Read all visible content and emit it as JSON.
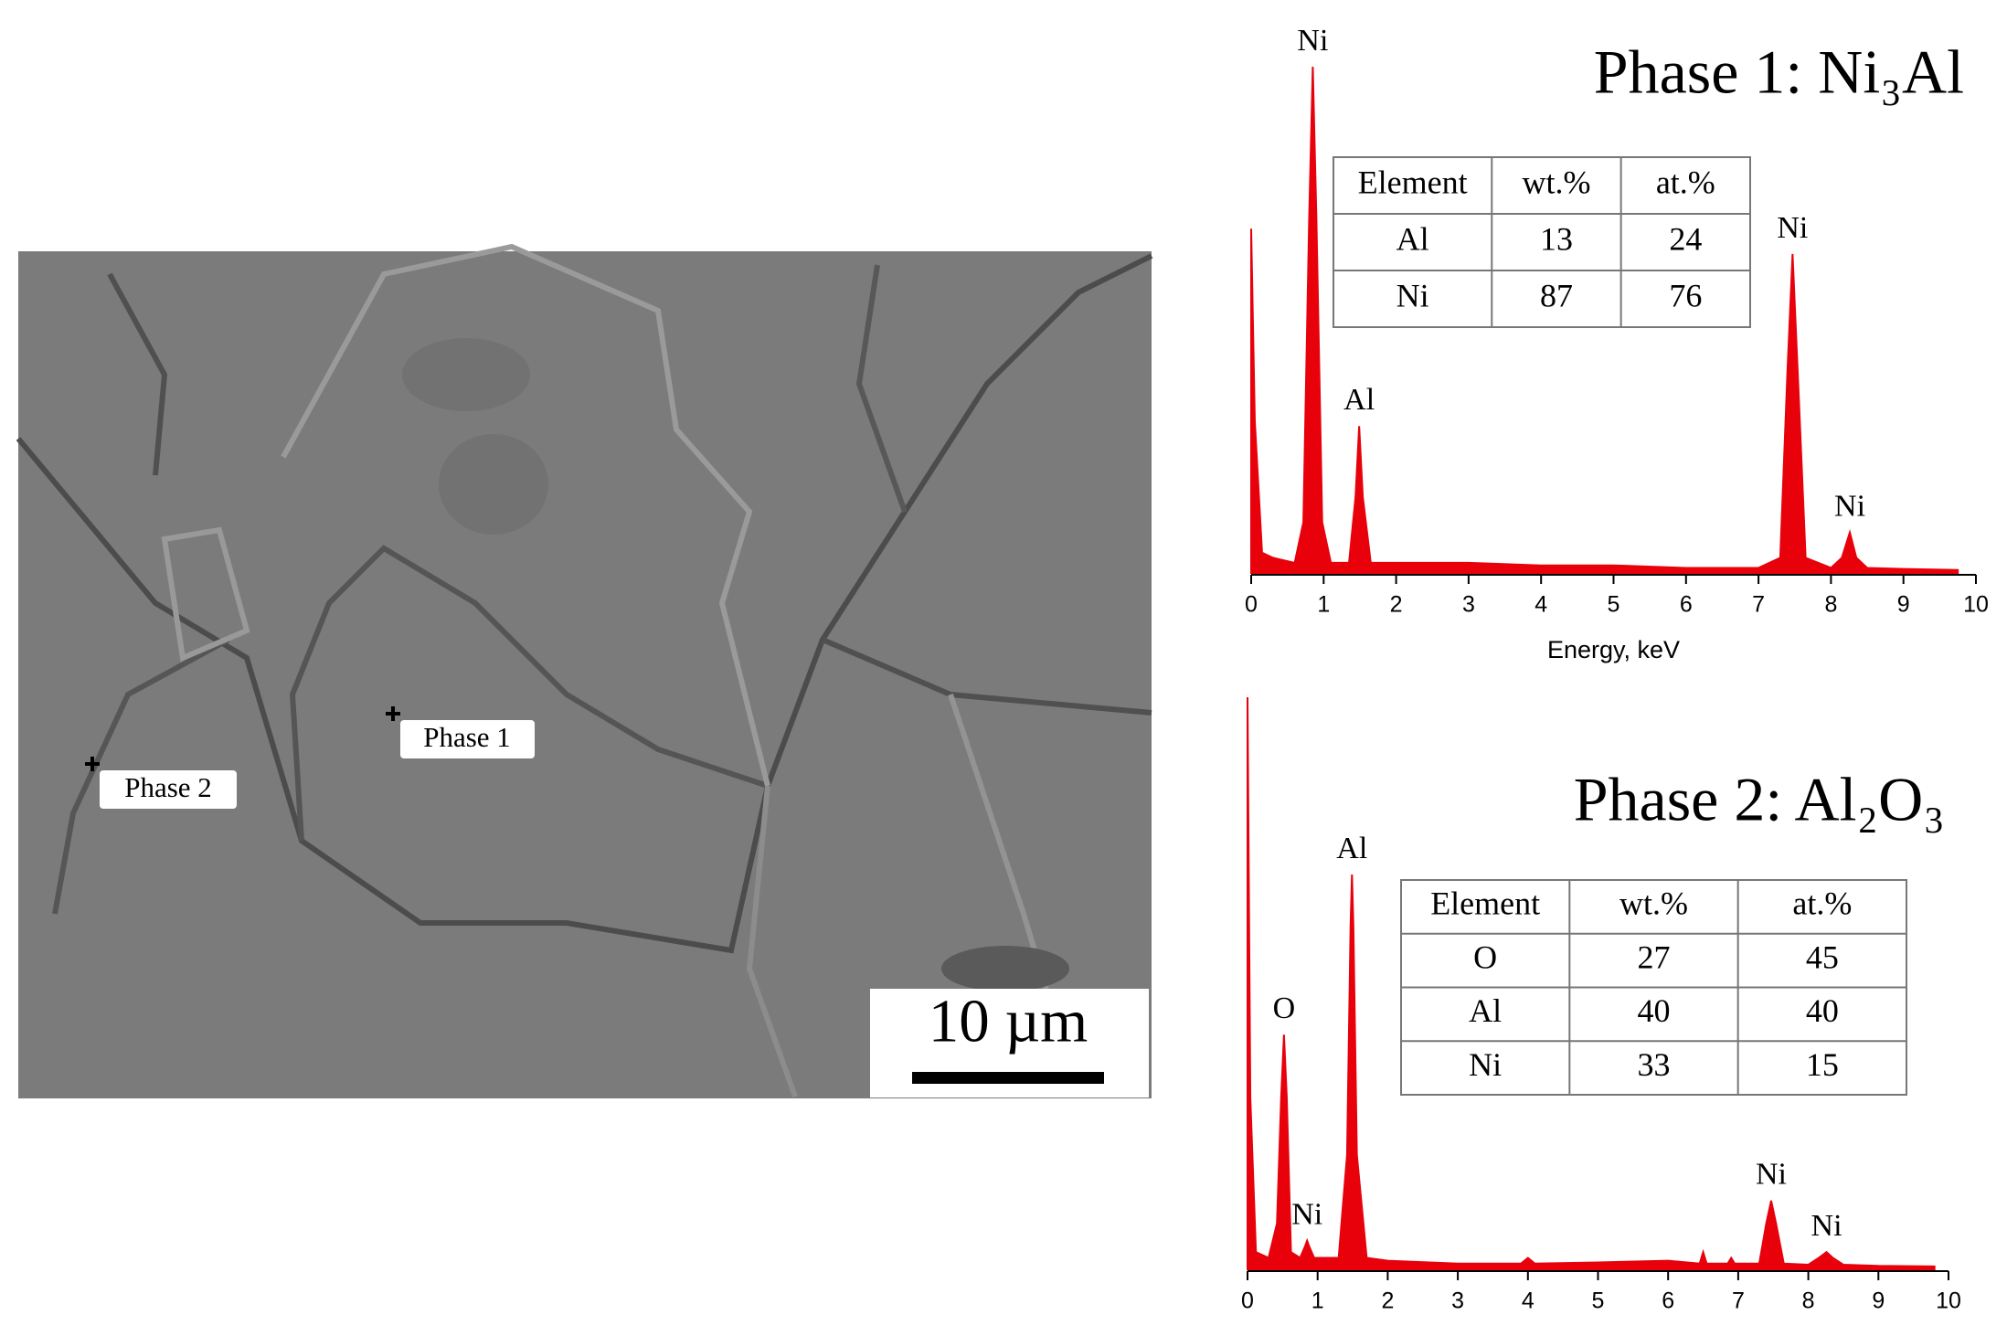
{
  "sem": {
    "labels": [
      "Phase 1",
      "Phase 2"
    ],
    "scale_bar": "10 µm"
  },
  "chart_data": [
    {
      "type": "area",
      "title": "Phase 1: Ni₃Al",
      "x": [
        0,
        0.05,
        0.15,
        0.3,
        0.6,
        0.72,
        0.8,
        0.85,
        0.9,
        0.98,
        1.1,
        1.35,
        1.44,
        1.49,
        1.54,
        1.65,
        2,
        3,
        4,
        5,
        6,
        7,
        7.3,
        7.4,
        7.47,
        7.54,
        7.65,
        8,
        8.15,
        8.26,
        8.35,
        8.5,
        9,
        9.75
      ],
      "series": [
        {
          "color": "#e8000b",
          "values": [
            68,
            30,
            4,
            3,
            2,
            10,
            70,
            100,
            70,
            10,
            2,
            2,
            15,
            29,
            15,
            2,
            2,
            2,
            1.5,
            1.5,
            1,
            1,
            3,
            40,
            63,
            40,
            3,
            1,
            3,
            8,
            3,
            1,
            0.8,
            0.6
          ]
        }
      ],
      "xlim": [
        0,
        10
      ],
      "xticks": [
        0,
        1,
        2,
        3,
        4,
        5,
        6,
        7,
        8,
        9,
        10
      ],
      "ylim": [
        0,
        100
      ],
      "xlabel": "Energy, keV",
      "annotations": [
        {
          "text": "Ni",
          "x": 0.85,
          "y": 100
        },
        {
          "text": "Al",
          "x": 1.49,
          "y": 29
        },
        {
          "text": "Ni",
          "x": 7.47,
          "y": 63
        },
        {
          "text": "Ni",
          "x": 8.26,
          "y": 8
        }
      ],
      "table": {
        "header": [
          "Element",
          "wt.%",
          "at.%"
        ],
        "rows": [
          [
            "Al",
            13,
            24
          ],
          [
            "Ni",
            87,
            76
          ]
        ]
      }
    },
    {
      "type": "area",
      "title": "Phase 2: Al₂O₃",
      "x": [
        0,
        0.04,
        0.12,
        0.3,
        0.42,
        0.48,
        0.52,
        0.56,
        0.62,
        0.75,
        0.82,
        0.85,
        0.88,
        0.95,
        1.3,
        1.42,
        1.47,
        1.49,
        1.51,
        1.56,
        1.7,
        2,
        3,
        3.9,
        4,
        4.1,
        5,
        6,
        6.45,
        6.5,
        6.55,
        6.85,
        6.9,
        6.95,
        7.3,
        7.4,
        7.47,
        7.54,
        7.65,
        8,
        8.15,
        8.26,
        8.35,
        8.5,
        9,
        9.8
      ],
      "series": [
        {
          "color": "#e8000b",
          "values": [
            100,
            30,
            3,
            2,
            8,
            30,
            41,
            30,
            3,
            2,
            4,
            5,
            4,
            2,
            2,
            20,
            60,
            69,
            60,
            20,
            2,
            1.5,
            1,
            1,
            2,
            1,
            1.2,
            1.5,
            1,
            3,
            1,
            1,
            2,
            1,
            1,
            8,
            12,
            8,
            1,
            0.8,
            2,
            3,
            2,
            0.8,
            0.6,
            0.5
          ]
        }
      ],
      "xlim": [
        0,
        10
      ],
      "xticks": [
        0,
        1,
        2,
        3,
        4,
        5,
        6,
        7,
        8,
        9,
        10
      ],
      "ylim": [
        0,
        100
      ],
      "annotations": [
        {
          "text": "O",
          "x": 0.52,
          "y": 41
        },
        {
          "text": "Ni",
          "x": 0.85,
          "y": 5
        },
        {
          "text": "Al",
          "x": 1.49,
          "y": 69
        },
        {
          "text": "Ni",
          "x": 7.47,
          "y": 12
        },
        {
          "text": "Ni",
          "x": 8.26,
          "y": 3
        }
      ],
      "table": {
        "header": [
          "Element",
          "wt.%",
          "at.%"
        ],
        "rows": [
          [
            "O",
            27,
            45
          ],
          [
            "Al",
            40,
            40
          ],
          [
            "Ni",
            33,
            15
          ]
        ]
      }
    }
  ]
}
